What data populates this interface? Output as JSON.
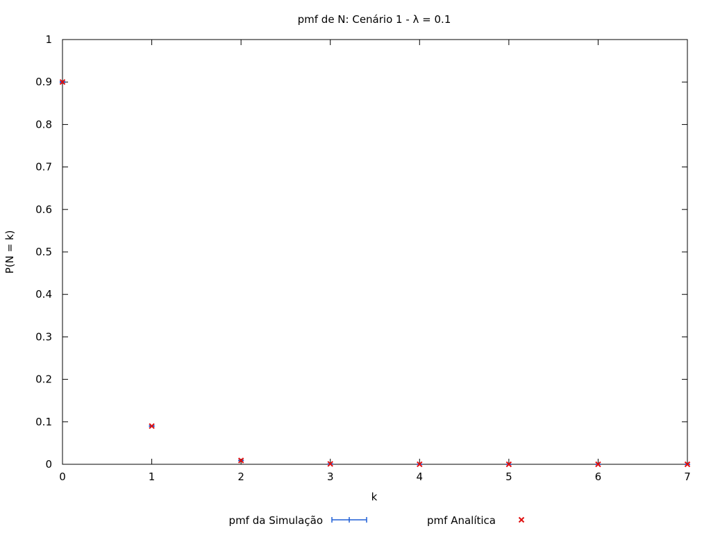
{
  "chart_data": {
    "type": "scatter",
    "title": "pmf de N: Cenário 1 - λ = 0.1",
    "xlabel": "k",
    "ylabel": "P(N = k)",
    "xlim": [
      0,
      7
    ],
    "ylim": [
      0,
      1
    ],
    "x_ticks": [
      "0",
      "1",
      "2",
      "3",
      "4",
      "5",
      "6",
      "7"
    ],
    "y_ticks": [
      "0",
      "0.1",
      "0.2",
      "0.3",
      "0.4",
      "0.5",
      "0.6",
      "0.7",
      "0.8",
      "0.9",
      "1"
    ],
    "grid": false,
    "legend_position": "bottom",
    "series": [
      {
        "name": "pmf da Simulação",
        "style": "errorbars",
        "color": "#1f5fd6",
        "x": [
          0,
          1,
          2,
          3,
          4,
          5,
          6,
          7
        ],
        "y": [
          0.9,
          0.09,
          0.009,
          0.0009,
          0.0001,
          0.0,
          0.0,
          0.0
        ],
        "err": [
          0.001,
          0.001,
          0.0005,
          0.0002,
          0.0001,
          0.0,
          0.0,
          0.0
        ]
      },
      {
        "name": "pmf Analítica",
        "style": "x-markers",
        "color": "#e01010",
        "x": [
          0,
          1,
          2,
          3,
          4,
          5,
          6,
          7
        ],
        "y": [
          0.9,
          0.09,
          0.009,
          0.0009,
          9e-05,
          9e-06,
          9e-07,
          9e-08
        ]
      }
    ]
  }
}
